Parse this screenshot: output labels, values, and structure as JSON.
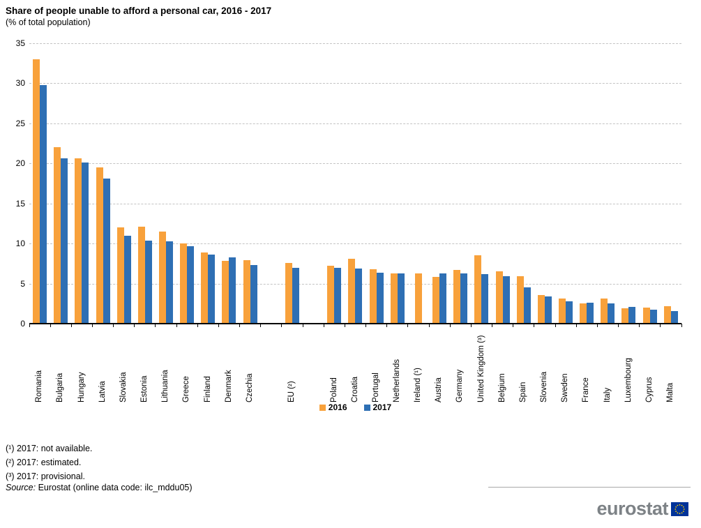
{
  "header": {
    "title": "Share of people unable to afford a personal car, 2016 - 2017",
    "subtitle": "(% of total population)"
  },
  "colors": {
    "series_2016": "#F8A13B",
    "series_2017": "#2E6FB4",
    "gridline": "#C3C3C3",
    "axis": "#000000",
    "logo_gray": "#7D8286",
    "flag_blue": "#003399",
    "flag_star_yellow": "#FFCC00"
  },
  "chart_data": {
    "type": "bar",
    "title": "Share of people unable to afford a personal car, 2016 - 2017",
    "subtitle": "(% of total population)",
    "ylabel": "% of total population",
    "ylim": [
      0,
      35
    ],
    "yticks": [
      0,
      5,
      10,
      15,
      20,
      25,
      30,
      35
    ],
    "grid": "dashed horizontal",
    "legend_position": "bottom center",
    "categories": [
      "Romania",
      "Bulgaria",
      "Hungary",
      "Latvia",
      "Slovakia",
      "Estonia",
      "Lithuania",
      "Greece",
      "Finland",
      "Denmark",
      "Czechia",
      "EU (²)",
      "Poland",
      "Croatia",
      "Portugal",
      "Netherlands",
      "Ireland (¹)",
      "Austria",
      "Germany",
      "United Kingdom (³)",
      "Belgium",
      "Spain",
      "Slovenia",
      "Sweden",
      "France",
      "Italy",
      "Luxembourg",
      "Cyprus",
      "Malta"
    ],
    "series": [
      {
        "name": "2016",
        "values": [
          33.0,
          22.0,
          20.6,
          19.5,
          12.0,
          12.1,
          11.5,
          10.0,
          8.9,
          7.8,
          7.9,
          7.6,
          7.2,
          8.1,
          6.8,
          6.3,
          6.3,
          5.8,
          6.7,
          8.5,
          6.5,
          5.9,
          3.6,
          3.1,
          2.5,
          3.1,
          1.9,
          2.0,
          2.2
        ]
      },
      {
        "name": "2017",
        "values": [
          29.8,
          20.6,
          20.1,
          18.1,
          11.0,
          10.4,
          10.3,
          9.7,
          8.6,
          8.3,
          7.3,
          7.0,
          7.0,
          6.9,
          6.4,
          6.3,
          null,
          6.3,
          6.3,
          6.2,
          5.9,
          4.5,
          3.4,
          2.8,
          2.6,
          2.5,
          2.1,
          1.7,
          1.6
        ]
      }
    ],
    "gap_after_category_indices": [
      10,
      11
    ]
  },
  "footnotes": [
    "(¹) 2017: not available.",
    "(²) 2017: estimated.",
    "(³) 2017: provisional."
  ],
  "source": {
    "label": "Source:",
    "text": " Eurostat (online data code: ilc_mddu05)"
  },
  "logo": {
    "text": "eurostat"
  }
}
